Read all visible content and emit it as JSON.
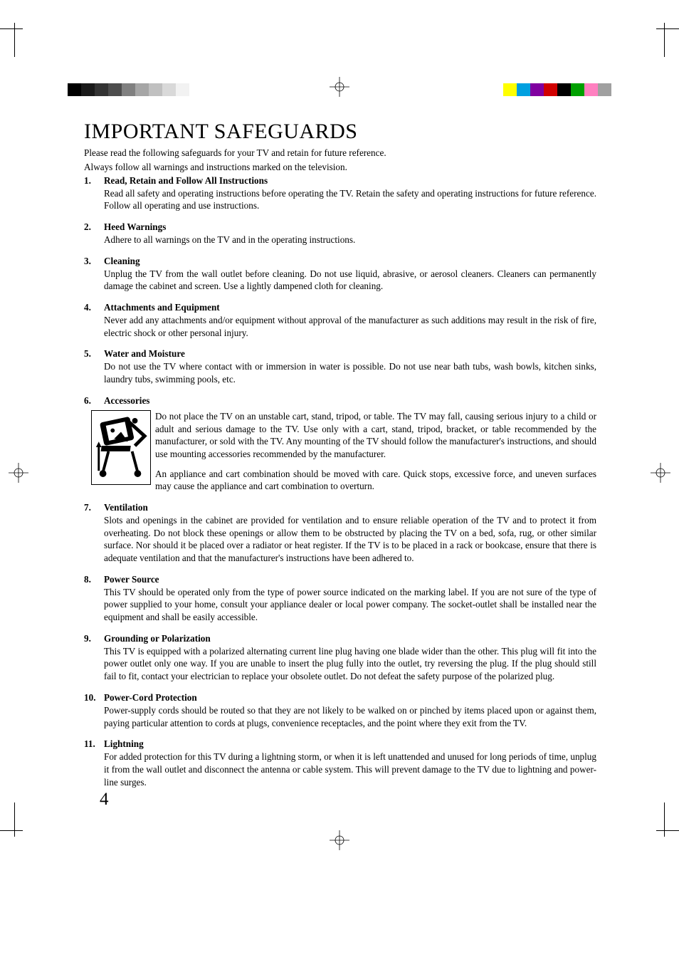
{
  "print_marks": {
    "gray_strip": [
      "#000000",
      "#1a1a1a",
      "#333333",
      "#4d4d4d",
      "#808080",
      "#a6a6a6",
      "#c0c0c0",
      "#d9d9d9",
      "#f2f2f2"
    ],
    "color_strip": [
      "#ffff00",
      "#00a0e0",
      "#8000a0",
      "#d00000",
      "#000000",
      "#00a000",
      "#ff80c0",
      "#a0a0a0"
    ]
  },
  "title": "IMPORTANT SAFEGUARDS",
  "intro_lines": [
    "Please read the following safeguards for your TV and retain for future reference.",
    "Always follow all warnings and instructions marked on the television."
  ],
  "page_number": "4",
  "safeguards": [
    {
      "n": "1.",
      "h": "Read, Retain and Follow All Instructions",
      "b": [
        "Read all safety and operating instructions before operating the TV.  Retain the safety and operating instructions for future reference.  Follow all operating and use instructions."
      ]
    },
    {
      "n": "2.",
      "h": "Heed Warnings",
      "b": [
        "Adhere to all warnings on the TV and in the operating instructions."
      ]
    },
    {
      "n": "3.",
      "h": "Cleaning",
      "b": [
        "Unplug the TV from the wall outlet before cleaning.  Do not use liquid, abrasive, or aerosol cleaners.  Cleaners can permanently damage the cabinet and screen.  Use a lightly dampened cloth for cleaning."
      ]
    },
    {
      "n": "4.",
      "h": "Attachments and Equipment",
      "b": [
        "Never add any attachments and/or equipment without approval of the manufacturer as such additions may result in the risk of fire, electric shock or other personal injury."
      ]
    },
    {
      "n": "5.",
      "h": "Water and Moisture",
      "b": [
        "Do not use the TV where contact with or immersion in water is possible.  Do not use near bath tubs, wash bowls, kitchen sinks, laundry tubs, swimming pools, etc."
      ]
    },
    {
      "n": "6.",
      "h": "Accessories",
      "b": [
        "Do not place the TV on an unstable cart, stand, tripod, or table.  The TV may fall, causing serious injury to a child or adult and serious damage to the TV.  Use only with a cart, stand, tripod, bracket, or table recommended by the manufacturer, or sold with the TV.  Any mounting of the TV should follow the manufacturer's instructions, and should use mounting accessories recommended by the manufacturer.",
        "An appliance and cart combination should be moved with care.  Quick stops, excessive force, and uneven surfaces may cause the appliance and cart combination to overturn."
      ],
      "image": true
    },
    {
      "n": "7.",
      "h": "Ventilation",
      "b": [
        "Slots and openings in the cabinet are provided for ventilation and to ensure reliable operation of the TV and to protect it from overheating.  Do not block these openings or allow them to be obstructed by placing the TV on a bed, sofa, rug, or other similar surface.  Nor should it be placed over a radiator or heat register.  If the TV is to be placed in a rack or bookcase, ensure that there is adequate ventilation and that the manufacturer's instructions have been adhered to."
      ]
    },
    {
      "n": "8.",
      "h": "Power Source",
      "b": [
        "This TV should be operated only from the type of power source indicated on the marking label.  If you are not sure of the type of power supplied to your home, consult your appliance dealer or local power company.  The socket-outlet shall be installed near the equipment and shall be easily accessible."
      ]
    },
    {
      "n": "9.",
      "h": " Grounding or Polarization",
      "b": [
        "This TV is equipped with a polarized alternating current line plug having one blade wider than the other.  This plug will fit into the power outlet only one way.  If you are unable to insert the plug fully into the outlet, try reversing the plug.  If the plug should still fail to fit, contact your electrician to replace your obsolete outlet.  Do not defeat the safety purpose of the polarized plug."
      ]
    },
    {
      "n": "10.",
      "h": "Power-Cord Protection",
      "b": [
        "Power-supply cords should be routed so that they are not likely to be walked on or pinched by items placed upon or against them, paying particular attention to cords at plugs, convenience receptacles, and the point where they exit from the TV."
      ]
    },
    {
      "n": "11.",
      "h": "Lightning",
      "b": [
        "For added protection for this TV during a lightning storm, or when it is left unattended and unused for long periods of time, unplug it from the wall outlet and disconnect the antenna or cable system.  This will prevent damage to the TV due to lightning and power-line surges."
      ]
    }
  ]
}
